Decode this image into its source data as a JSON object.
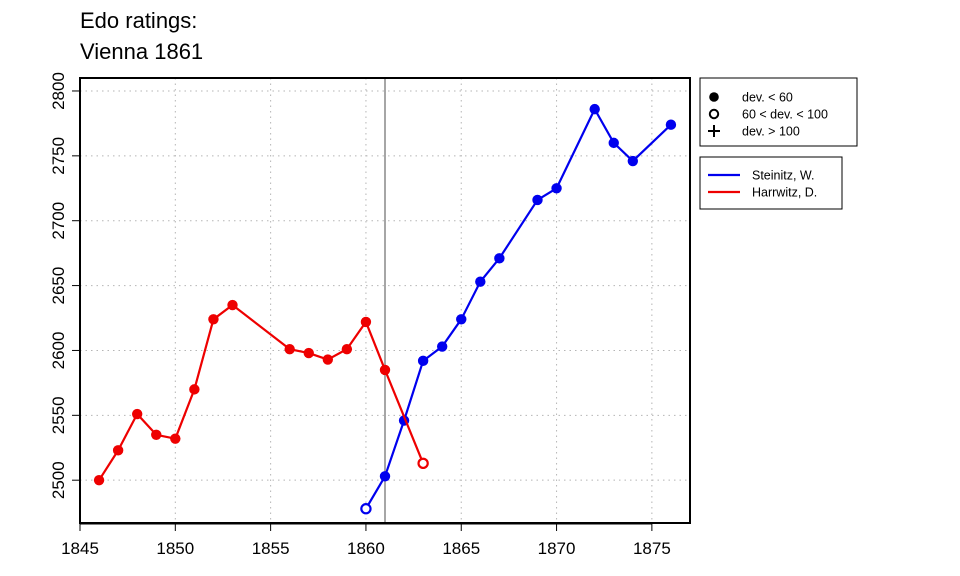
{
  "chart_data": {
    "type": "line",
    "title_lines": [
      "Edo ratings:",
      "Vienna 1861"
    ],
    "xlabel": "",
    "ylabel": "",
    "xlim": [
      1845,
      1877
    ],
    "ylim": [
      2467,
      2810
    ],
    "x_ticks": [
      1845,
      1850,
      1855,
      1860,
      1865,
      1870,
      1875
    ],
    "y_ticks": [
      2500,
      2550,
      2600,
      2650,
      2700,
      2750,
      2800
    ],
    "grid": true,
    "reference_line_x": 1861,
    "marker_legend": [
      {
        "marker": "filled-circle",
        "label": "dev. < 60"
      },
      {
        "marker": "open-circle",
        "label": "60 < dev. < 100"
      },
      {
        "marker": "plus",
        "label": "dev. > 100"
      }
    ],
    "legend_placement": "outside-right",
    "series": [
      {
        "name": "Steinitz, W.",
        "color": "#0000ee",
        "points": [
          {
            "x": 1860,
            "y": 2478,
            "marker": "open-circle"
          },
          {
            "x": 1861,
            "y": 2503,
            "marker": "filled-circle"
          },
          {
            "x": 1862,
            "y": 2546,
            "marker": "filled-circle"
          },
          {
            "x": 1863,
            "y": 2592,
            "marker": "filled-circle"
          },
          {
            "x": 1864,
            "y": 2603,
            "marker": "filled-circle"
          },
          {
            "x": 1865,
            "y": 2624,
            "marker": "filled-circle"
          },
          {
            "x": 1866,
            "y": 2653,
            "marker": "filled-circle"
          },
          {
            "x": 1867,
            "y": 2671,
            "marker": "filled-circle"
          },
          {
            "x": 1869,
            "y": 2716,
            "marker": "filled-circle"
          },
          {
            "x": 1870,
            "y": 2725,
            "marker": "filled-circle"
          },
          {
            "x": 1872,
            "y": 2786,
            "marker": "filled-circle"
          },
          {
            "x": 1873,
            "y": 2760,
            "marker": "filled-circle"
          },
          {
            "x": 1874,
            "y": 2746,
            "marker": "filled-circle"
          },
          {
            "x": 1876,
            "y": 2774,
            "marker": "filled-circle"
          }
        ]
      },
      {
        "name": "Harrwitz, D.",
        "color": "#ee0000",
        "points": [
          {
            "x": 1846,
            "y": 2500,
            "marker": "filled-circle"
          },
          {
            "x": 1847,
            "y": 2523,
            "marker": "filled-circle"
          },
          {
            "x": 1848,
            "y": 2551,
            "marker": "filled-circle"
          },
          {
            "x": 1849,
            "y": 2535,
            "marker": "filled-circle"
          },
          {
            "x": 1850,
            "y": 2532,
            "marker": "filled-circle"
          },
          {
            "x": 1851,
            "y": 2570,
            "marker": "filled-circle"
          },
          {
            "x": 1852,
            "y": 2624,
            "marker": "filled-circle"
          },
          {
            "x": 1853,
            "y": 2635,
            "marker": "filled-circle"
          },
          {
            "x": 1856,
            "y": 2601,
            "marker": "filled-circle"
          },
          {
            "x": 1857,
            "y": 2598,
            "marker": "filled-circle"
          },
          {
            "x": 1858,
            "y": 2593,
            "marker": "filled-circle"
          },
          {
            "x": 1859,
            "y": 2601,
            "marker": "filled-circle"
          },
          {
            "x": 1860,
            "y": 2622,
            "marker": "filled-circle"
          },
          {
            "x": 1861,
            "y": 2585,
            "marker": "filled-circle"
          },
          {
            "x": 1863,
            "y": 2513,
            "marker": "open-circle"
          }
        ]
      }
    ]
  }
}
